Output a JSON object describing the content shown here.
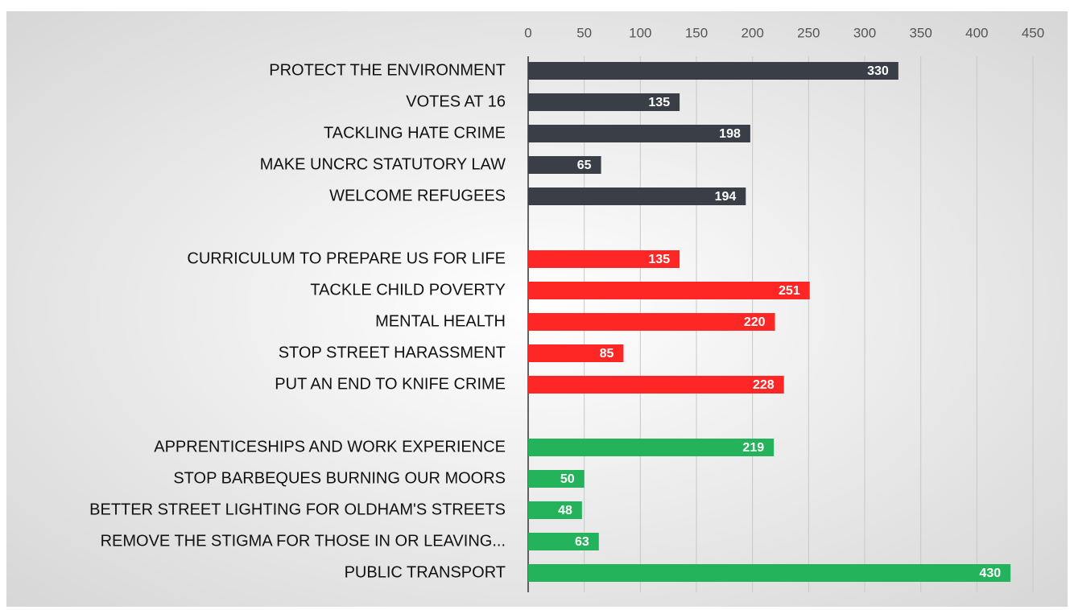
{
  "chart_data": {
    "type": "barh",
    "categories": [
      "PROTECT THE ENVIRONMENT",
      "VOTES AT 16",
      "TACKLING HATE CRIME",
      "MAKE UNCRC STATUTORY LAW",
      "WELCOME REFUGEES",
      null,
      "CURRICULUM TO PREPARE US FOR LIFE",
      "TACKLE CHILD POVERTY",
      "MENTAL HEALTH",
      "STOP STREET HARASSMENT",
      "PUT AN END TO KNIFE CRIME",
      null,
      "APPRENTICESHIPS AND WORK EXPERIENCE",
      "STOP BARBEQUES BURNING OUR MOORS",
      "BETTER STREET LIGHTING FOR OLDHAM'S STREETS",
      "REMOVE THE STIGMA FOR THOSE IN OR LEAVING...",
      "PUBLIC TRANSPORT"
    ],
    "values": [
      330,
      135,
      198,
      65,
      194,
      null,
      135,
      251,
      220,
      85,
      228,
      null,
      219,
      50,
      48,
      63,
      430
    ],
    "colors": [
      "#3a3e46",
      "#3a3e46",
      "#3a3e46",
      "#3a3e46",
      "#3a3e46",
      null,
      "#ff2626",
      "#ff2626",
      "#ff2626",
      "#ff2626",
      "#ff2626",
      null,
      "#24b25a",
      "#24b25a",
      "#24b25a",
      "#24b25a",
      "#24b25a"
    ],
    "xlim": [
      0,
      450
    ],
    "xticks": [
      0,
      50,
      100,
      150,
      200,
      250,
      300,
      350,
      400,
      450
    ],
    "grid": true
  }
}
